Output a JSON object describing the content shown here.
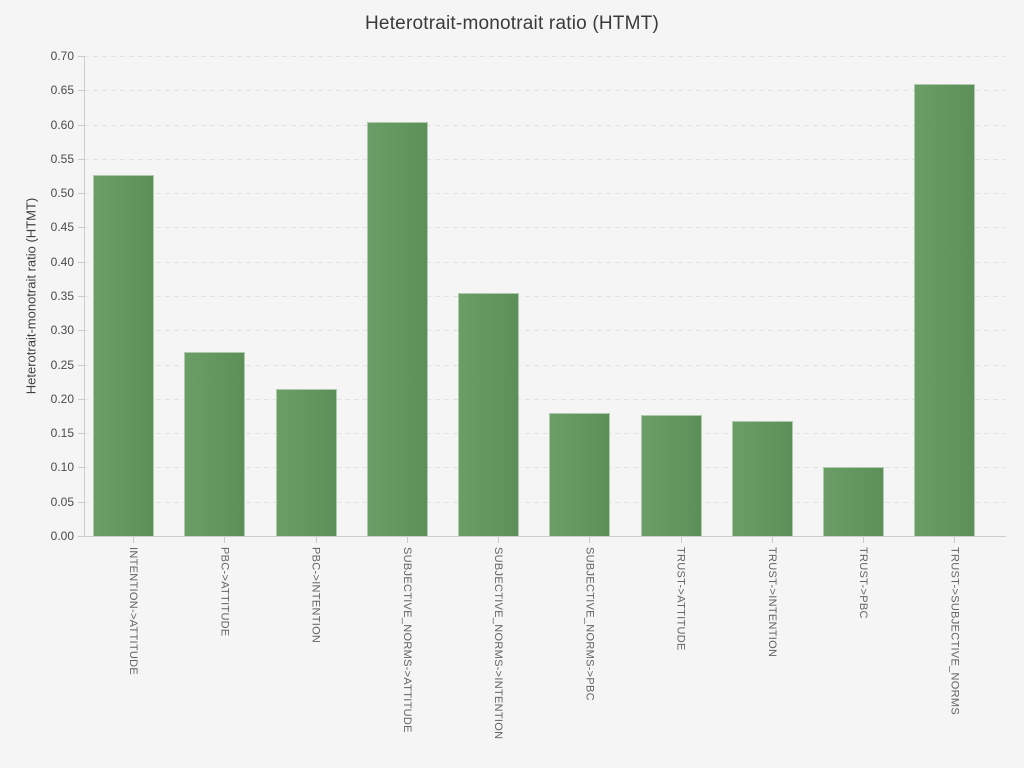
{
  "page": {
    "background": "#f5f5f6"
  },
  "header": {
    "title": "Heterotrait-monotrait ratio (HTMT)"
  },
  "chart_data": {
    "type": "bar",
    "title": "Heterotrait-monotrait ratio (HTMT)",
    "xlabel": "",
    "ylabel": "Heterotrait-monotrait ratio (HTMT)",
    "categories": [
      "INTENTION->ATTITUDE",
      "PBC->ATTITUDE",
      "PBC->INTENTION",
      "SUBJECTIVE_NORMS->ATTITUDE",
      "SUBJECTIVE_NORMS->INTENTION",
      "SUBJECTIVE_NORMS->PBC",
      "TRUST->ATTITUDE",
      "TRUST->INTENTION",
      "TRUST->PBC",
      "TRUST->SUBJECTIVE_NORMS"
    ],
    "values": [
      0.527,
      0.268,
      0.214,
      0.604,
      0.355,
      0.179,
      0.177,
      0.168,
      0.1,
      0.659
    ],
    "ylim": [
      0.0,
      0.7
    ],
    "ytick_step": 0.05,
    "ytick_labels": [
      "0.00",
      "0.05",
      "0.10",
      "0.15",
      "0.20",
      "0.25",
      "0.30",
      "0.35",
      "0.40",
      "0.45",
      "0.50",
      "0.55",
      "0.60",
      "0.65",
      "0.70"
    ],
    "grid": {
      "horizontal": true,
      "vertical": false,
      "style": "dashed",
      "color": "#e2e2e2"
    },
    "legend": "none",
    "colors": {
      "bar_gradient_left": "#6b9e66",
      "bar_gradient_right": "#5c9058",
      "bar_border": "#aec9ab",
      "axis_line": "#cccccc",
      "tick_label": "#4a4a4a",
      "category_label": "#646464",
      "title_text": "#3a3a3a",
      "background": "#f5f5f6"
    }
  }
}
